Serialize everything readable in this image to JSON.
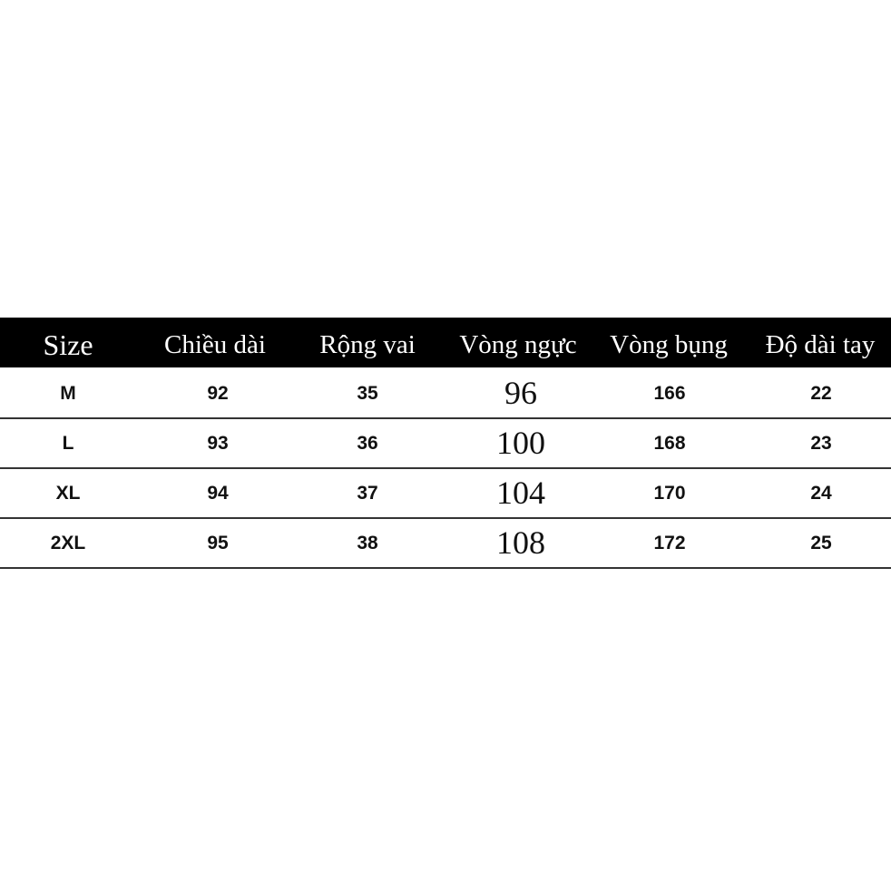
{
  "table": {
    "headers": [
      "Size",
      "Chiều dài",
      "Rộng vai",
      "Vòng ngực",
      "Vòng bụng",
      "Độ dài tay"
    ],
    "rows": [
      [
        "M",
        "92",
        "35",
        "96",
        "166",
        "22"
      ],
      [
        "L",
        "93",
        "36",
        "100",
        "168",
        "23"
      ],
      [
        "XL",
        "94",
        "37",
        "104",
        "170",
        "24"
      ],
      [
        "2XL",
        "95",
        "38",
        "108",
        "172",
        "25"
      ]
    ]
  }
}
